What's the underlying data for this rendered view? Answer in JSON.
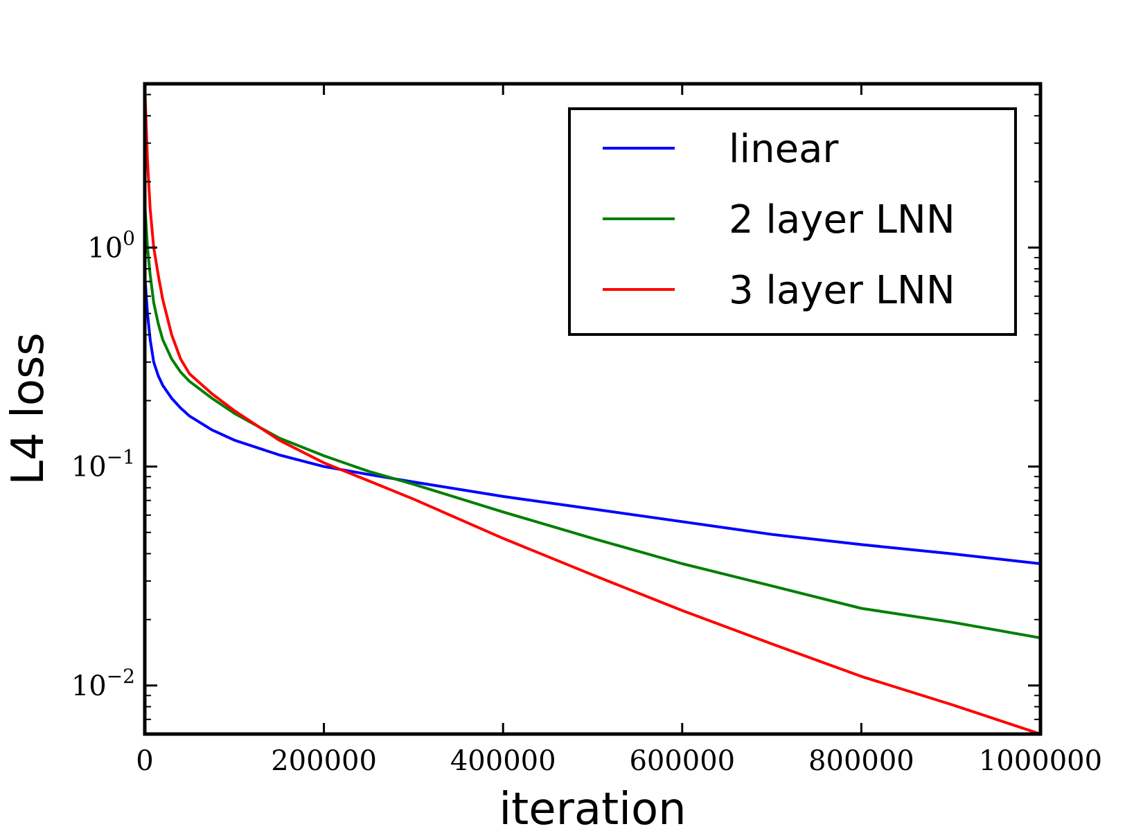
{
  "chart_data": {
    "type": "line",
    "title": "",
    "xlabel": "iteration",
    "ylabel": "L4 loss",
    "xscale": "linear",
    "yscale": "log",
    "xlim": [
      0,
      1000000
    ],
    "ylim": [
      0.006,
      5.6
    ],
    "grid": false,
    "legend_position": "top-right",
    "x_ticks": [
      0,
      200000,
      400000,
      600000,
      800000,
      1000000
    ],
    "x_tick_labels": [
      "0",
      "200000",
      "400000",
      "600000",
      "800000",
      "1000000"
    ],
    "y_ticks": [
      {
        "value": 1,
        "base": "10",
        "exp": "0"
      },
      {
        "value": 0.1,
        "base": "10",
        "exp": "−1"
      },
      {
        "value": 0.01,
        "base": "10",
        "exp": "−2"
      }
    ],
    "series": [
      {
        "name": "linear",
        "color": "#0000ff",
        "x": [
          0,
          3000,
          6000,
          10000,
          15000,
          20000,
          30000,
          40000,
          50000,
          75000,
          100000,
          150000,
          200000,
          250000,
          300000,
          400000,
          500000,
          600000,
          700000,
          800000,
          900000,
          1000000
        ],
        "y": [
          0.75,
          0.5,
          0.38,
          0.3,
          0.26,
          0.235,
          0.205,
          0.185,
          0.17,
          0.147,
          0.132,
          0.113,
          0.1,
          0.092,
          0.085,
          0.073,
          0.064,
          0.056,
          0.049,
          0.044,
          0.04,
          0.036
        ]
      },
      {
        "name": "2 layer LNN",
        "color": "#007f00",
        "x": [
          0,
          3000,
          6000,
          10000,
          15000,
          20000,
          30000,
          40000,
          50000,
          75000,
          100000,
          150000,
          200000,
          250000,
          300000,
          400000,
          500000,
          600000,
          700000,
          800000,
          900000,
          1000000
        ],
        "y": [
          1.6,
          1.0,
          0.75,
          0.56,
          0.45,
          0.38,
          0.31,
          0.27,
          0.245,
          0.205,
          0.175,
          0.135,
          0.112,
          0.095,
          0.083,
          0.062,
          0.047,
          0.036,
          0.0285,
          0.0225,
          0.0195,
          0.0165
        ]
      },
      {
        "name": "3 layer LNN",
        "color": "#ff0000",
        "x": [
          0,
          3000,
          6000,
          10000,
          15000,
          20000,
          30000,
          40000,
          50000,
          75000,
          100000,
          150000,
          200000,
          250000,
          300000,
          400000,
          500000,
          600000,
          700000,
          800000,
          900000,
          1000000
        ],
        "y": [
          5.5,
          2.5,
          1.5,
          1.0,
          0.75,
          0.58,
          0.4,
          0.31,
          0.265,
          0.215,
          0.18,
          0.132,
          0.104,
          0.086,
          0.071,
          0.047,
          0.032,
          0.022,
          0.0155,
          0.011,
          0.0082,
          0.006
        ]
      }
    ]
  }
}
